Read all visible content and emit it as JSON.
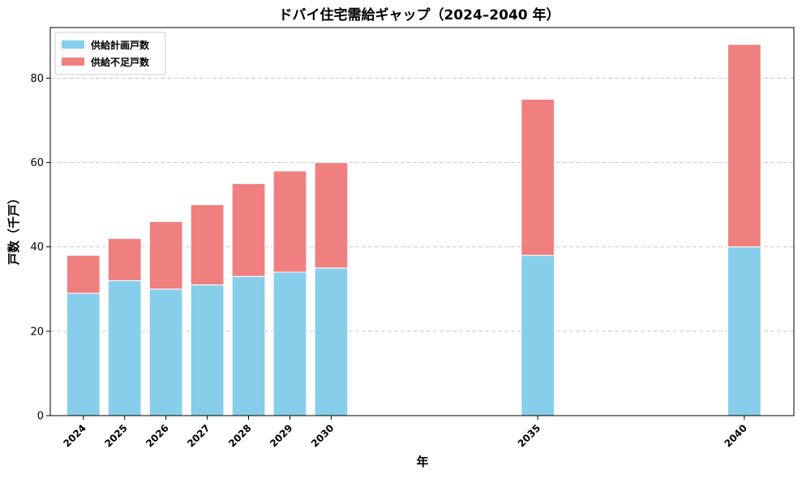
{
  "chart_data": {
    "type": "bar",
    "stacked": true,
    "title": "ドバイ住宅需給ギャップ（2024–2040 年）",
    "xlabel": "年",
    "ylabel": "戸数（千戸）",
    "x": [
      2024,
      2025,
      2026,
      2027,
      2028,
      2029,
      2030,
      2035,
      2040
    ],
    "x_tick_labels": [
      "2024",
      "2025",
      "2026",
      "2027",
      "2028",
      "2029",
      "2030",
      "2035",
      "2040"
    ],
    "xlim": [
      2023.2,
      2041.2
    ],
    "series": [
      {
        "name": "供給計画戸数",
        "color": "#87ceeb",
        "values": [
          29,
          32,
          30,
          31,
          33,
          34,
          35,
          38,
          40
        ]
      },
      {
        "name": "供給不足戸数",
        "color": "#f08080",
        "values": [
          9,
          10,
          16,
          19,
          22,
          24,
          25,
          37,
          48
        ]
      }
    ],
    "ylim": [
      0,
      92
    ],
    "yticks": [
      0,
      20,
      40,
      60,
      80
    ],
    "grid": {
      "y": true,
      "x": false,
      "style": "dashed"
    },
    "legend": {
      "position": "top-left"
    }
  }
}
